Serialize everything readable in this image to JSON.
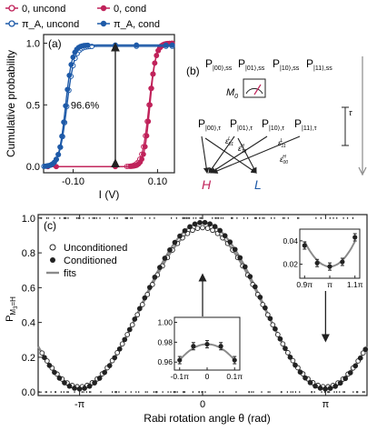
{
  "legend_top": [
    {
      "label": "0, uncond",
      "color": "#c0225a",
      "filled": false
    },
    {
      "label": "0, cond",
      "color": "#c0225a",
      "filled": true
    },
    {
      "label": "π_A, uncond",
      "color": "#1e5aa8",
      "filled": false
    },
    {
      "label": "π_A, cond",
      "color": "#1e5aa8",
      "filled": true
    }
  ],
  "colors": {
    "red": "#c0225a",
    "blue": "#1e5aa8",
    "gray": "#8a8a8a",
    "dark": "#222222"
  },
  "chart_data": [
    {
      "panel": "(a)",
      "type": "line",
      "ylabel": "Cumulative probability",
      "xlabel": "I (V)",
      "xlim": [
        -0.17,
        0.14
      ],
      "ylim": [
        -0.05,
        1.07
      ],
      "xticks": [
        "-0.10",
        "0.10"
      ],
      "xtick_values": [
        -0.1,
        0.1
      ],
      "yticks": [
        "0.0",
        "0.5",
        "1.0"
      ],
      "ytick_values": [
        0,
        0.5,
        1
      ],
      "annotation": "96.6%",
      "threshold_x": 0.0,
      "series": [
        {
          "name": "0, uncond",
          "center": 0.08,
          "width": 0.008,
          "low": 0.0,
          "high": 1.0
        },
        {
          "name": "0, cond",
          "center": 0.082,
          "width": 0.007,
          "low": 0.0,
          "high": 1.0
        },
        {
          "name": "π_A, uncond",
          "center": -0.115,
          "width": 0.009,
          "low": 0.0,
          "high": 0.975
        },
        {
          "name": "π_A, cond",
          "center": -0.118,
          "width": 0.008,
          "low": 0.0,
          "high": 0.985
        }
      ]
    },
    {
      "panel": "(c)",
      "type": "scatter",
      "ylabel": "P_{M_3=H}",
      "xlabel": "Rabi rotation angle θ (rad)",
      "xlim": [
        -4.2,
        4.2
      ],
      "ylim": [
        -0.02,
        1.02
      ],
      "xticks": [
        "-π",
        "0",
        "π"
      ],
      "xtick_values": [
        -3.1416,
        0,
        3.1416
      ],
      "yticks": [
        "0.0",
        "0.2",
        "0.4",
        "0.6",
        "0.8",
        "1.0"
      ],
      "ytick_values": [
        0,
        0.2,
        0.4,
        0.6,
        0.8,
        1.0
      ],
      "legend": [
        "Unconditioned",
        "Conditioned",
        "fits"
      ],
      "series": [
        {
          "name": "Unconditioned",
          "min": 0.03,
          "max": 0.945
        },
        {
          "name": "Conditioned",
          "min": 0.018,
          "max": 0.975
        }
      ],
      "inset_right": {
        "xticks": [
          "0.9π",
          "π",
          "1.1π"
        ],
        "yticks": [
          "0.02",
          "0.04"
        ],
        "x": [
          "0.9π",
          "0.95π",
          "π",
          "1.05π",
          "1.1π"
        ],
        "values": [
          0.036,
          0.021,
          0.018,
          0.022,
          0.043
        ]
      },
      "inset_left": {
        "xticks": [
          "-0.1π",
          "0",
          "0.1π"
        ],
        "yticks": [
          "0.96",
          "0.98",
          "1.00"
        ],
        "x": [
          "-0.1π",
          "-0.05π",
          "0",
          "0.05π",
          "0.1π"
        ],
        "values": [
          0.962,
          0.976,
          0.978,
          0.976,
          0.962
        ]
      }
    }
  ],
  "diagram": {
    "panel": "(b)",
    "top_row": [
      "P",
      "P",
      "P",
      "P"
    ],
    "top_subs": [
      "|00⟩,ss",
      "|01⟩,ss",
      "|10⟩,ss",
      "|11⟩,ss"
    ],
    "mid_row": [
      "P",
      "P",
      "P",
      "P"
    ],
    "mid_subs": [
      "|00⟩,τ",
      "|01⟩,τ",
      "|10⟩,τ",
      "|11⟩,τ"
    ],
    "meter_label": "M",
    "meter_sub": "0",
    "tau_label": "τ",
    "eps_labels": [
      "ε",
      "ε",
      "ε",
      "ε"
    ],
    "eps_subs": [
      "01",
      "10",
      "11",
      "00"
    ],
    "eps_sups": [
      "L",
      "H",
      "L",
      "H"
    ],
    "outcome_H": "H",
    "outcome_L": "L"
  }
}
